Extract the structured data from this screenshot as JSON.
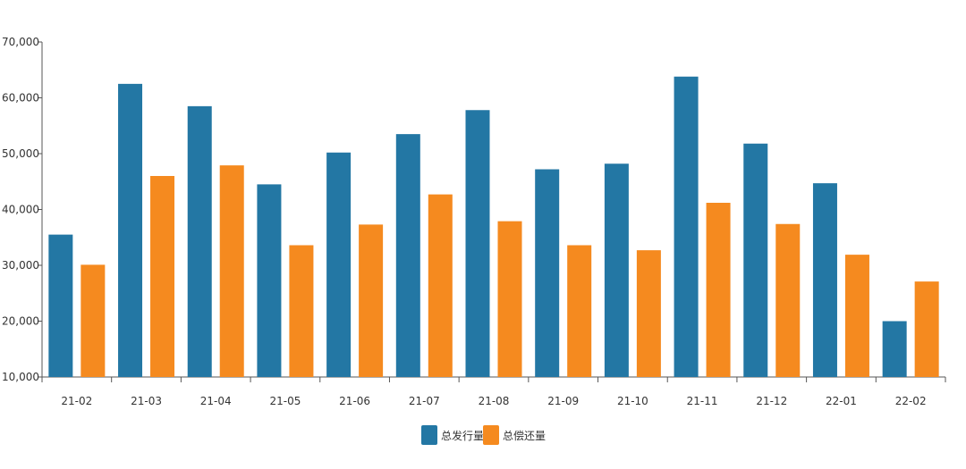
{
  "chart_data": {
    "type": "bar",
    "categories": [
      "21-02",
      "21-03",
      "21-04",
      "21-05",
      "21-06",
      "21-07",
      "21-08",
      "21-09",
      "21-10",
      "21-11",
      "21-12",
      "22-01",
      "22-02"
    ],
    "series": [
      {
        "name": "总发行量",
        "color": "#2377a4",
        "values": [
          35500,
          62500,
          58500,
          44500,
          50200,
          53500,
          57800,
          47200,
          48200,
          63800,
          51800,
          44700,
          20000
        ]
      },
      {
        "name": "总偿还量",
        "color": "#f58a1f",
        "values": [
          30100,
          46000,
          47900,
          33600,
          37300,
          42700,
          37900,
          33600,
          32700,
          41200,
          37400,
          31900,
          27100
        ]
      }
    ],
    "ylim": [
      10000,
      70000
    ],
    "yticks": [
      "10,000",
      "20,000",
      "30,000",
      "40,000",
      "50,000",
      "60,000",
      "70,000"
    ],
    "grid": false,
    "legend_position": "bottom-center"
  }
}
